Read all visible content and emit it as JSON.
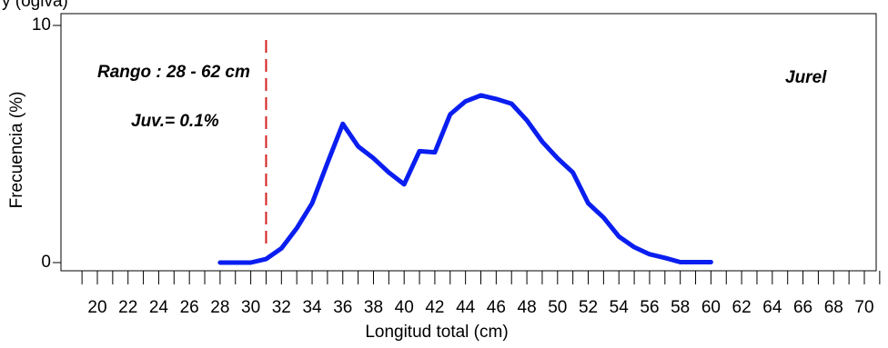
{
  "top_fragment": "y                                                       (ogiva)",
  "chart_data": {
    "type": "line",
    "xlabel": "Longitud total (cm)",
    "ylabel": "Frecuencia (%)",
    "xlim": [
      19,
      71
    ],
    "ylim": [
      0,
      10
    ],
    "x_tick_labels": [
      "20",
      "22",
      "24",
      "26",
      "28",
      "30",
      "32",
      "34",
      "36",
      "38",
      "40",
      "42",
      "44",
      "46",
      "48",
      "50",
      "52",
      "54",
      "56",
      "58",
      "60",
      "62",
      "64",
      "66",
      "68",
      "70"
    ],
    "y_tick_labels": [
      "0",
      "10"
    ],
    "annotations": {
      "range": "Rango : 28 - 62 cm",
      "juveniles": "Juv.= 0.1%",
      "species": "Jurel"
    },
    "reference_line": {
      "x": 31,
      "color": "#d42020",
      "style": "dashed"
    },
    "series": [
      {
        "color": "#0a1ef0",
        "x": [
          28,
          29,
          30,
          31,
          32,
          33,
          34,
          35,
          36,
          37,
          38,
          39,
          40,
          41,
          42,
          43,
          44,
          45,
          46,
          47,
          48,
          49,
          50,
          51,
          52,
          53,
          54,
          55,
          56,
          57,
          58,
          59,
          60
        ],
        "y": [
          0,
          0,
          0,
          0.15,
          0.6,
          1.45,
          2.5,
          4.2,
          5.85,
          4.9,
          4.4,
          3.8,
          3.3,
          4.7,
          4.65,
          6.25,
          6.8,
          7.05,
          6.9,
          6.7,
          6.0,
          5.1,
          4.4,
          3.8,
          2.5,
          1.9,
          1.1,
          0.65,
          0.35,
          0.2,
          0.02,
          0.02,
          0.02
        ]
      }
    ]
  }
}
